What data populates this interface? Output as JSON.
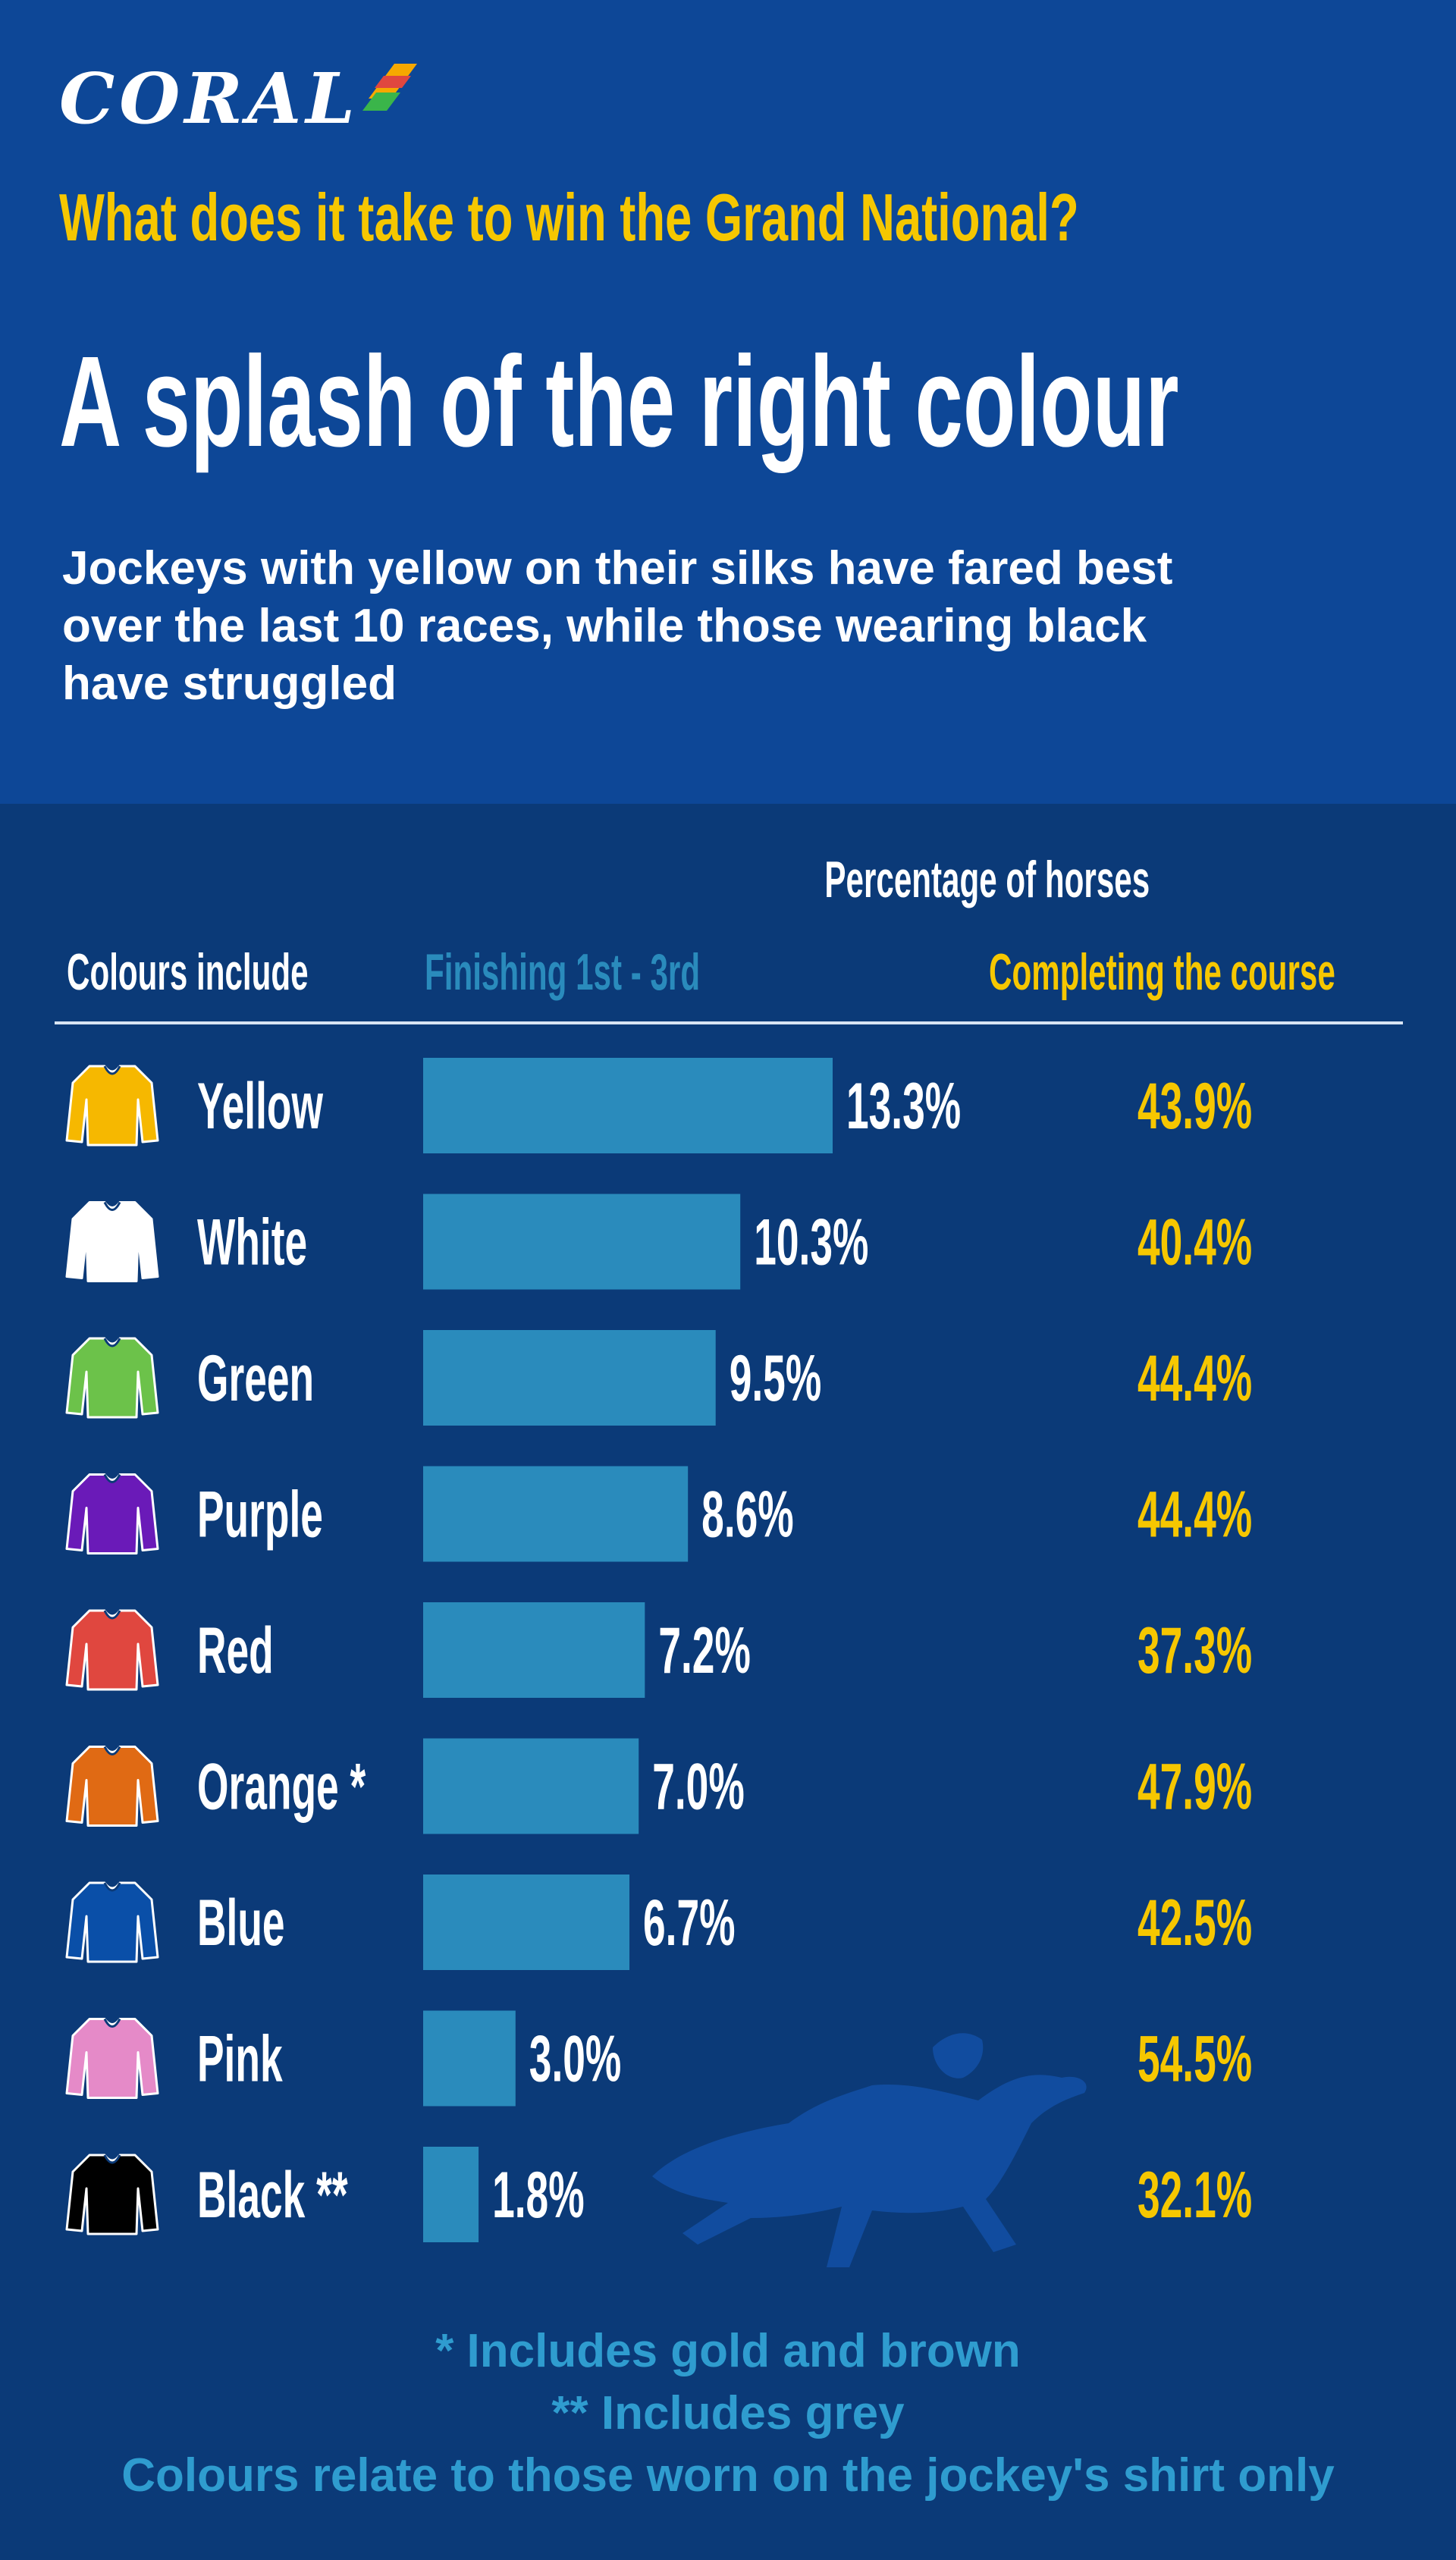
{
  "brand": {
    "name": "CORAL"
  },
  "header": {
    "question": "What does it take to win the Grand National?",
    "headline": "A splash of the right colour",
    "subtitle": "Jockeys with yellow on their silks have fared best over the last 10 races, while those wearing black have struggled"
  },
  "chart_data": {
    "type": "bar",
    "title": "Percentage of horses",
    "row_header": "Colours include",
    "categories": [
      "Yellow",
      "White",
      "Green",
      "Purple",
      "Red",
      "Orange *",
      "Blue",
      "Pink",
      "Black **"
    ],
    "series": [
      {
        "name": "Finishing 1st - 3rd",
        "values": [
          13.3,
          10.3,
          9.5,
          8.6,
          7.2,
          7.0,
          6.7,
          3.0,
          1.8
        ],
        "color": "#2a8bbc"
      },
      {
        "name": "Completing the course",
        "values": [
          43.9,
          40.4,
          44.4,
          44.4,
          37.3,
          47.9,
          42.5,
          54.5,
          32.1
        ],
        "color": "#f6c700"
      }
    ],
    "silk_colors": [
      "#f6b800",
      "#ffffff",
      "#6cc24a",
      "#6a1ab8",
      "#e0473f",
      "#e06a14",
      "#0a4fa8",
      "#e58ac8",
      "#000000"
    ],
    "value_suffix": "%"
  },
  "footnotes": [
    "* Includes gold and brown",
    "** Includes grey",
    "Colours relate to those worn on the jockey's shirt only"
  ],
  "colors": {
    "header_bg": "#0d4797",
    "body_bg": "#0b3a78",
    "accent_yellow": "#f6c700",
    "bar_blue": "#2a8bbc"
  }
}
